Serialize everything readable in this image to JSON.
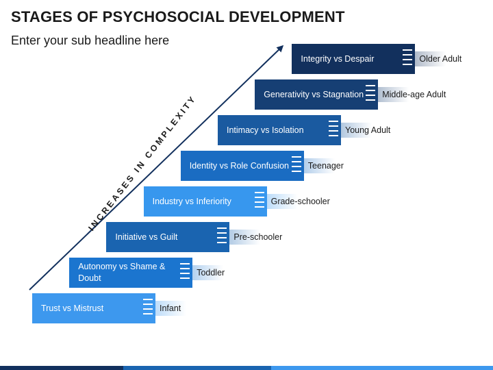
{
  "header": {
    "title": "STAGES OF PSYCHOSOCIAL DEVELOPMENT",
    "subtitle": "Enter your sub headline here"
  },
  "arrow": {
    "label": "INCREASES IN COMPLEXITY"
  },
  "stages": [
    {
      "stage": "Trust vs Mistrust",
      "age": "Infant",
      "color": "#3d98ee"
    },
    {
      "stage": "Autonomy vs Shame & Doubt",
      "age": "Toddler",
      "color": "#1b75cf"
    },
    {
      "stage": "Initiative vs Guilt",
      "age": "Pre-schooler",
      "color": "#1a64b0"
    },
    {
      "stage": "Industry vs Inferiority",
      "age": "Grade-schooler",
      "color": "#3797ee"
    },
    {
      "stage": "Identity vs Role Confusion",
      "age": "Teenager",
      "color": "#1a6cc2"
    },
    {
      "stage": "Intimacy vs Isolation",
      "age": "Young Adult",
      "color": "#1a5aa0"
    },
    {
      "stage": "Generativity vs Stagnation",
      "age": "Middle-age Adult",
      "color": "#163f74"
    },
    {
      "stage": "Integrity vs Despair",
      "age": "Older Adult",
      "color": "#12305d"
    }
  ],
  "theme": {
    "arrow_color": "#12305d",
    "footer_colors": [
      "#12305d",
      "#1a64b0",
      "#3d98ee"
    ]
  }
}
